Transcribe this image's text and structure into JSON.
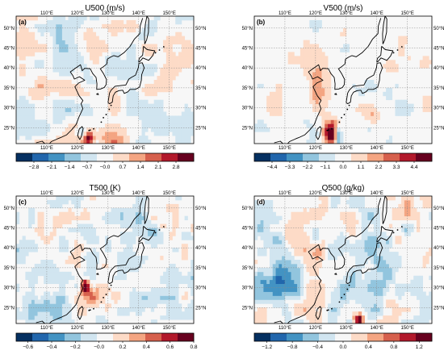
{
  "panels": [
    {
      "id": "u500",
      "label": "(a)",
      "title": "U500 (m/s)",
      "colorbar_ticks": [
        "−2.8",
        "−2.1",
        "−1.4",
        "−0.7",
        "−0.0",
        "0.7",
        "1.4",
        "2.1",
        "2.8"
      ],
      "range": [
        -3.5,
        3.5
      ]
    },
    {
      "id": "v500",
      "label": "(b)",
      "title": "V500 (m/s)",
      "colorbar_ticks": [
        "−4.4",
        "−3.3",
        "−2.2",
        "−1.1",
        "0.0",
        "1.1",
        "2.2",
        "3.3",
        "4.4"
      ],
      "range": [
        -5.5,
        5.5
      ]
    },
    {
      "id": "t500",
      "label": "(c)",
      "title": "T500 (K)",
      "colorbar_ticks": [
        "−0.6",
        "−0.4",
        "−0.2",
        "−0.0",
        "0.2",
        "0.4",
        "0.6",
        "0.8"
      ],
      "range": [
        -0.7,
        0.8
      ]
    },
    {
      "id": "q500",
      "label": "(d)",
      "title": "Q500 (g/kg)",
      "colorbar_ticks": [
        "−1.2",
        "−0.8",
        "−0.4",
        "0.0",
        "0.4",
        "0.8",
        "1.2"
      ],
      "range": [
        -1.4,
        1.4
      ]
    }
  ],
  "lon_labels": [
    "110°E",
    "120°E",
    "130°E",
    "140°E",
    "150°E"
  ],
  "lat_labels": [
    "50°N",
    "45°N",
    "40°N",
    "35°N",
    "30°N",
    "25°N"
  ],
  "colormap": [
    "#053061",
    "#2166ac",
    "#4393c3",
    "#92c5de",
    "#d1e5f0",
    "#f7f7f7",
    "#fddbc7",
    "#f4a582",
    "#d6604d",
    "#b2182b",
    "#67001f"
  ]
}
